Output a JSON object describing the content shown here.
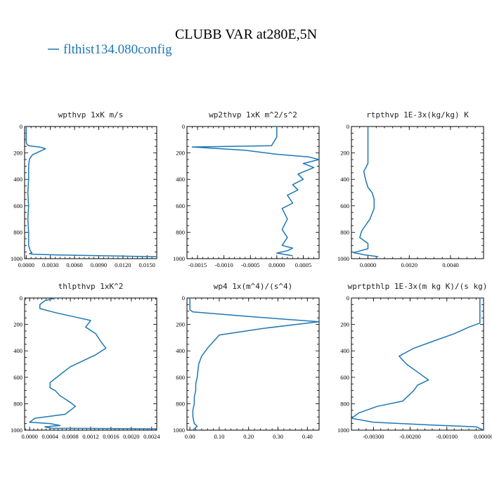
{
  "figure": {
    "title": "CLUBB VAR at280E,5N",
    "legend": "flthist134.080config",
    "legend_color": "#1f77b4"
  },
  "chart_data": [
    {
      "type": "line",
      "title": "wpthvp   1xK m/s",
      "xlim": [
        -0.0002,
        0.0162
      ],
      "ylim": [
        1000,
        0
      ],
      "xticks": [
        0.0,
        0.003,
        0.006,
        0.009,
        0.012,
        0.015
      ],
      "xtick_labels": [
        "0.0000",
        "0.0030",
        "0.0060",
        "0.0090",
        "0.0120",
        "0.0150"
      ],
      "yticks": [
        0,
        200,
        400,
        600,
        800,
        1000
      ],
      "ytick_labels": [
        "0",
        "200",
        "400",
        "600",
        "800",
        "1000"
      ],
      "series": [
        {
          "x": [
            0.0,
            0.0,
            0.0001,
            0.0003,
            0.0009,
            0.0017,
            0.0024,
            0.0017,
            0.0008,
            0.0004,
            0.0003,
            0.0003,
            0.0002,
            0.0003,
            0.0002,
            0.0003,
            0.0003,
            0.0003,
            0.0004,
            0.0005,
            0.0007,
            0.0004,
            0.0009,
            0.004,
            0.0095,
            0.0162
          ],
          "y": [
            0,
            120,
            135,
            145,
            150,
            156,
            168,
            188,
            212,
            245,
            300,
            400,
            500,
            600,
            700,
            800,
            850,
            900,
            920,
            940,
            955,
            962,
            967,
            972,
            978,
            985
          ]
        }
      ]
    },
    {
      "type": "line",
      "title": "wp2thvp   1xK m^2/s^2",
      "xlim": [
        -0.0017,
        0.0008
      ],
      "ylim": [
        1000,
        0
      ],
      "xticks": [
        -0.0015,
        -0.001,
        -0.0005,
        0.0,
        0.0005
      ],
      "xtick_labels": [
        "-0.0015",
        "-0.0010",
        "-0.0005",
        "0.0000",
        "0.0005"
      ],
      "yticks": [
        0,
        200,
        400,
        600,
        800,
        1000
      ],
      "ytick_labels": [
        "0",
        "200",
        "400",
        "600",
        "800",
        "1000"
      ],
      "series": [
        {
          "x": [
            0.0,
            0.0,
            -0.0001,
            -0.0016,
            -0.0006,
            0.0,
            0.0006,
            0.0008,
            0.0005,
            0.0007,
            0.0004,
            0.0005,
            0.0003,
            0.0004,
            0.0002,
            0.0003,
            0.0001,
            0.0002,
            0.0001,
            0.0002,
            0.0001,
            0.0003,
            0.0002,
            0.0,
            0.0003
          ],
          "y": [
            0,
            80,
            145,
            155,
            180,
            210,
            230,
            250,
            280,
            310,
            360,
            400,
            440,
            480,
            520,
            580,
            620,
            700,
            780,
            840,
            900,
            920,
            940,
            958,
            978
          ]
        }
      ]
    },
    {
      "type": "line",
      "title": "rtpthvp   1E-3x(kg/kg) K",
      "xlim": [
        -0.0008,
        0.0056
      ],
      "ylim": [
        1000,
        0
      ],
      "xticks": [
        0.0,
        0.002,
        0.004
      ],
      "xtick_labels": [
        "0.0000",
        "0.0020",
        "0.0040"
      ],
      "yticks": [
        0,
        200,
        400,
        600,
        800,
        1000
      ],
      "ytick_labels": [
        "0",
        "200",
        "400",
        "600",
        "800",
        "1000"
      ],
      "series": [
        {
          "x": [
            0.0,
            0.0,
            0.0,
            -0.0002,
            -0.0001,
            0.0,
            0.0002,
            0.0003,
            0.0003,
            0.0001,
            -0.0003,
            -0.0004,
            0.0,
            0.0,
            -0.0007,
            -0.0002,
            0.0005
          ],
          "y": [
            0,
            150,
            280,
            340,
            410,
            460,
            500,
            550,
            620,
            700,
            790,
            840,
            885,
            925,
            955,
            970,
            985
          ]
        }
      ]
    },
    {
      "type": "line",
      "title": "thlpthvp   1xK^2",
      "xlim": [
        -0.0001,
        0.0025
      ],
      "ylim": [
        1000,
        0
      ],
      "xticks": [
        0.0,
        0.0004,
        0.0008,
        0.0012,
        0.0016,
        0.002,
        0.0024
      ],
      "xtick_labels": [
        "0.0000",
        "0.0004",
        "0.0008",
        "0.0012",
        "0.0016",
        "0.0020",
        "0.0024"
      ],
      "yticks": [
        0,
        200,
        400,
        600,
        800,
        1000
      ],
      "ytick_labels": [
        "0",
        "200",
        "400",
        "600",
        "800",
        "1000"
      ],
      "series": [
        {
          "x": [
            0.0005,
            0.0003,
            0.0002,
            0.0002,
            0.0005,
            0.0012,
            0.0011,
            0.0013,
            0.0014,
            0.0015,
            0.0013,
            0.0008,
            0.0006,
            0.0004,
            0.0004,
            0.0005,
            0.0006,
            0.0008,
            0.0009,
            0.0007,
            0.0001,
            0.0,
            0.0004,
            0.0006,
            0.0003,
            0.0004,
            0.0025
          ],
          "y": [
            0,
            20,
            50,
            80,
            110,
            170,
            220,
            270,
            330,
            380,
            430,
            520,
            580,
            640,
            680,
            700,
            740,
            790,
            820,
            880,
            910,
            940,
            950,
            965,
            975,
            985,
            990
          ]
        }
      ]
    },
    {
      "type": "line",
      "title": "wp4   1x(m^4)/(s^4)",
      "xlim": [
        -0.01,
        0.44
      ],
      "ylim": [
        1000,
        0
      ],
      "xticks": [
        0.0,
        0.1,
        0.2,
        0.3,
        0.4
      ],
      "xtick_labels": [
        "0.00",
        "0.10",
        "0.20",
        "0.30",
        "0.40"
      ],
      "yticks": [
        0,
        200,
        400,
        600,
        800,
        1000
      ],
      "ytick_labels": [
        "0",
        "200",
        "400",
        "600",
        "800",
        "1000"
      ],
      "series": [
        {
          "x": [
            0.0,
            0.0,
            0.01,
            0.2,
            0.44,
            0.25,
            0.1,
            0.08,
            0.06,
            0.05,
            0.04,
            0.03,
            0.025,
            0.02,
            0.02,
            0.015,
            0.015,
            0.01,
            0.01,
            0.015,
            0.025,
            0.015,
            0.01
          ],
          "y": [
            0,
            90,
            105,
            140,
            180,
            230,
            280,
            330,
            380,
            410,
            440,
            500,
            600,
            650,
            700,
            750,
            800,
            850,
            900,
            950,
            970,
            990,
            1000
          ]
        }
      ]
    },
    {
      "type": "line",
      "title": "wprtpthlp   1E-3x(m kg K)/(s kg)",
      "xlim": [
        -0.0036,
        0.0
      ],
      "ylim": [
        1000,
        0
      ],
      "xticks": [
        -0.003,
        -0.002,
        -0.001,
        0.0
      ],
      "xtick_labels": [
        "-0.00300",
        "-0.00200",
        "-0.00100",
        "0.00000"
      ],
      "yticks": [
        0,
        200,
        400,
        600,
        800,
        1000
      ],
      "ytick_labels": [
        "0",
        "200",
        "400",
        "600",
        "800",
        "1000"
      ],
      "series": [
        {
          "x": [
            -0.0001,
            -0.0001,
            -0.0001,
            -0.0004,
            -0.0008,
            -0.0014,
            -0.0019,
            -0.0023,
            -0.0021,
            -0.0018,
            -0.0015,
            -0.0018,
            -0.0019,
            -0.0022,
            -0.0029,
            -0.0034,
            -0.0036,
            -0.003,
            -0.0015,
            -0.0002,
            0.0
          ],
          "y": [
            0,
            100,
            190,
            220,
            270,
            330,
            380,
            440,
            500,
            560,
            620,
            660,
            700,
            780,
            820,
            870,
            910,
            940,
            960,
            975,
            1000
          ]
        }
      ]
    }
  ]
}
